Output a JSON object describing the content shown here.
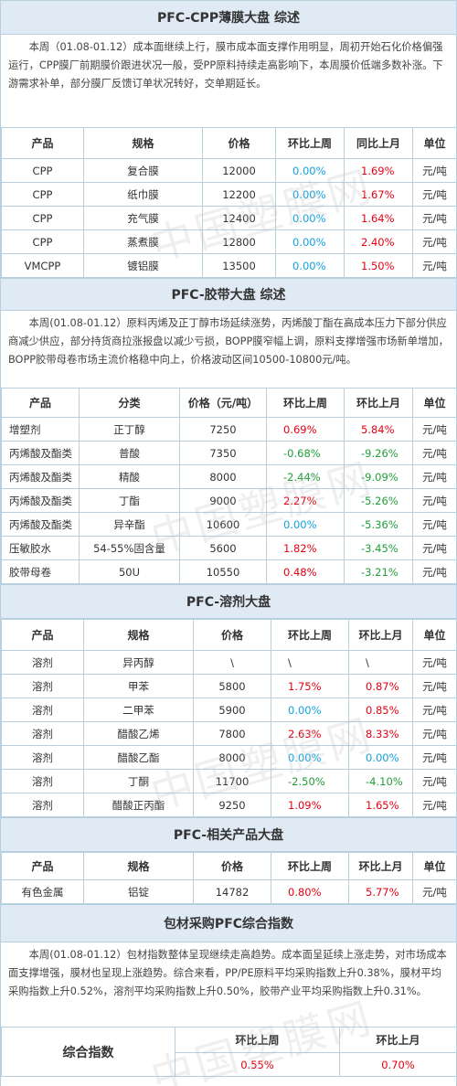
{
  "cpp": {
    "title": "PFC-CPP薄膜大盘 综述",
    "summary": "本周（01.08-01.12）成本面继续上行，膜市成本面支撑作用明显，周初开始石化价格偏强运行，CPP膜厂前期膜价跟进状况一般，受PP原料持续走高影响下，本周膜价低端多数补涨。下游需求补单，部分膜厂反馈订单状况转好，交单期延长。",
    "headers": [
      "产品",
      "规格",
      "价格",
      "环比上周",
      "同比上月",
      "单位"
    ],
    "rows": [
      {
        "product": "CPP",
        "spec": "复合膜",
        "price": "12000",
        "wow": "0.00%",
        "mom": "1.69%",
        "unit": "元/吨",
        "wow_dir": "flat",
        "mom_dir": "up"
      },
      {
        "product": "CPP",
        "spec": "纸巾膜",
        "price": "12200",
        "wow": "0.00%",
        "mom": "1.67%",
        "unit": "元/吨",
        "wow_dir": "flat",
        "mom_dir": "up"
      },
      {
        "product": "CPP",
        "spec": "充气膜",
        "price": "12400",
        "wow": "0.00%",
        "mom": "1.64%",
        "unit": "元/吨",
        "wow_dir": "flat",
        "mom_dir": "up"
      },
      {
        "product": "CPP",
        "spec": "蒸煮膜",
        "price": "12800",
        "wow": "0.00%",
        "mom": "2.40%",
        "unit": "元/吨",
        "wow_dir": "flat",
        "mom_dir": "up"
      },
      {
        "product": "VMCPP",
        "spec": "镀铝膜",
        "price": "13500",
        "wow": "0.00%",
        "mom": "1.50%",
        "unit": "元/吨",
        "wow_dir": "flat",
        "mom_dir": "up"
      }
    ]
  },
  "tape": {
    "title": "PFC-胶带大盘 综述",
    "summary": "本周(01.08-01.12）原料丙烯及正丁醇市场延续涨势，丙烯酸丁酯在高成本压力下部分供应商减少供应，部分持货商拉涨报盘以减少亏损，BOPP膜窄幅上调，原料支撑增强市场新单增加，BOPP胶带母卷市场主流价格稳中向上，价格波动区间10500-10800元/吨。",
    "headers": [
      "产品",
      "分类",
      "价格（元/吨）",
      "环比上周",
      "环比上月",
      "单位"
    ],
    "rows": [
      {
        "product": "增塑剂",
        "spec": "正丁醇",
        "price": "7250",
        "wow": "0.69%",
        "mom": "5.84%",
        "unit": "元/吨",
        "wow_dir": "up",
        "mom_dir": "up"
      },
      {
        "product": "丙烯酸及酯类",
        "spec": "普酸",
        "price": "7350",
        "wow": "-0.68%",
        "mom": "-9.26%",
        "unit": "元/吨",
        "wow_dir": "down",
        "mom_dir": "down"
      },
      {
        "product": "丙烯酸及酯类",
        "spec": "精酸",
        "price": "8000",
        "wow": "-2.44%",
        "mom": "-9.09%",
        "unit": "元/吨",
        "wow_dir": "down",
        "mom_dir": "down"
      },
      {
        "product": "丙烯酸及酯类",
        "spec": "丁酯",
        "price": "9000",
        "wow": "2.27%",
        "mom": "-5.26%",
        "unit": "元/吨",
        "wow_dir": "up",
        "mom_dir": "down"
      },
      {
        "product": "丙烯酸及酯类",
        "spec": "异辛酯",
        "price": "10600",
        "wow": "0.00%",
        "mom": "-5.36%",
        "unit": "元/吨",
        "wow_dir": "flat",
        "mom_dir": "down"
      },
      {
        "product": "压敏胶水",
        "spec": "54-55%固含量",
        "price": "5600",
        "wow": "1.82%",
        "mom": "-3.45%",
        "unit": "元/吨",
        "wow_dir": "up",
        "mom_dir": "down"
      },
      {
        "product": "胶带母卷",
        "spec": "50U",
        "price": "10550",
        "wow": "0.48%",
        "mom": "-3.21%",
        "unit": "元/吨",
        "wow_dir": "up",
        "mom_dir": "down"
      }
    ]
  },
  "solvent": {
    "title": "PFC-溶剂大盘",
    "headers": [
      "产品",
      "规格",
      "价格",
      "环比上周",
      "环比上月",
      "单位"
    ],
    "rows": [
      {
        "product": "溶剂",
        "spec": "异丙醇",
        "price": "\\",
        "wow": "\\",
        "mom": "\\",
        "unit": "元/吨",
        "wow_dir": "none",
        "mom_dir": "none"
      },
      {
        "product": "溶剂",
        "spec": "甲苯",
        "price": "5800",
        "wow": "1.75%",
        "mom": "0.87%",
        "unit": "元/吨",
        "wow_dir": "up",
        "mom_dir": "up"
      },
      {
        "product": "溶剂",
        "spec": "二甲苯",
        "price": "5900",
        "wow": "0.00%",
        "mom": "0.85%",
        "unit": "元/吨",
        "wow_dir": "flat",
        "mom_dir": "up"
      },
      {
        "product": "溶剂",
        "spec": "醋酸乙烯",
        "price": "7800",
        "wow": "2.63%",
        "mom": "8.33%",
        "unit": "元/吨",
        "wow_dir": "up",
        "mom_dir": "up"
      },
      {
        "product": "溶剂",
        "spec": "醋酸乙酯",
        "price": "8000",
        "wow": "0.00%",
        "mom": "0.00%",
        "unit": "元/吨",
        "wow_dir": "flat",
        "mom_dir": "flat"
      },
      {
        "product": "溶剂",
        "spec": "丁酮",
        "price": "11700",
        "wow": "-2.50%",
        "mom": "-4.10%",
        "unit": "元/吨",
        "wow_dir": "down",
        "mom_dir": "down"
      },
      {
        "product": "溶剂",
        "spec": "醋酸正丙酯",
        "price": "9250",
        "wow": "1.09%",
        "mom": "1.65%",
        "unit": "元/吨",
        "wow_dir": "up",
        "mom_dir": "up"
      }
    ]
  },
  "related": {
    "title": "PFC-相关产品大盘",
    "headers": [
      "产品",
      "规格",
      "价格",
      "环比上周",
      "环比上月",
      "单位"
    ],
    "rows": [
      {
        "product": "有色金属",
        "spec": "铝锭",
        "price": "14782",
        "wow": "0.80%",
        "mom": "5.77%",
        "unit": "元/吨",
        "wow_dir": "up",
        "mom_dir": "up"
      }
    ]
  },
  "index": {
    "title": "包材采购PFC综合指数",
    "summary": "本周(01.08-01.12）包材指数整体呈现继续走高趋势。成本面呈延续上涨走势，对市场成本面支撑增强，膜材也呈现上涨趋势。综合来看，PP/PE原料平均采购指数上升0.38%，膜材平均采购指数上升0.52%，溶剂平均采购指数上升0.50%，胶带产业平均采购指数上升0.31%。",
    "label": "综合指数",
    "wow_header": "环比上周",
    "mom_header": "环比上月",
    "wow_value": "0.55%",
    "mom_value": "0.70%"
  },
  "watermark": "中国塑膜网",
  "colors": {
    "up": "#e60012",
    "down": "#1f9e3a",
    "flat": "#12a3e1",
    "header_bg": "#dfeaf5",
    "border": "#b8cfe0"
  }
}
